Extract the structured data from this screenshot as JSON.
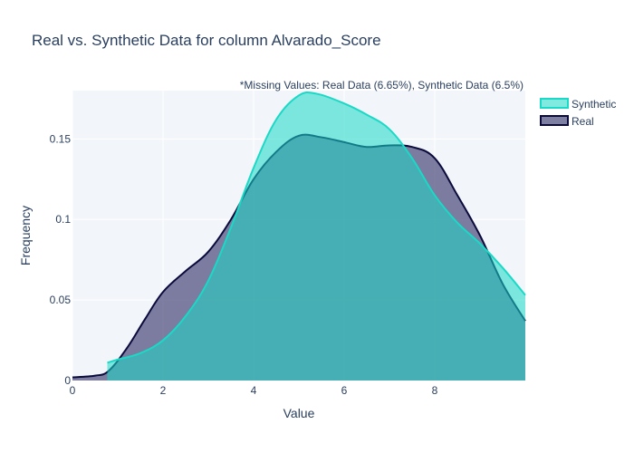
{
  "chart_data": {
    "type": "area",
    "title": "Real vs. Synthetic Data for column Alvarado_Score",
    "xlabel": "Value",
    "ylabel": "Frequency",
    "annotation": "*Missing Values: Real Data (6.65%), Synthetic Data (6.5%)",
    "xlim": [
      0,
      10
    ],
    "ylim": [
      0,
      0.18
    ],
    "x_ticks": [
      {
        "value": 0,
        "label": "0"
      },
      {
        "value": 2,
        "label": "2"
      },
      {
        "value": 4,
        "label": "4"
      },
      {
        "value": 6,
        "label": "6"
      },
      {
        "value": 8,
        "label": "8"
      }
    ],
    "y_ticks": [
      {
        "value": 0,
        "label": "0"
      },
      {
        "value": 0.05,
        "label": "0.05"
      },
      {
        "value": 0.1,
        "label": "0.1"
      },
      {
        "value": 0.15,
        "label": "0.15"
      }
    ],
    "grid": true,
    "legend_position": "top-right",
    "series": [
      {
        "name": "Real",
        "line_color": "#0a0a3c",
        "fill_color": "#3b3b6e",
        "fill_opacity": 0.65,
        "points": [
          [
            0,
            0.002
          ],
          [
            0.5,
            0.003
          ],
          [
            0.8,
            0.006
          ],
          [
            1.2,
            0.02
          ],
          [
            1.6,
            0.038
          ],
          [
            2.0,
            0.055
          ],
          [
            2.5,
            0.068
          ],
          [
            3.0,
            0.08
          ],
          [
            3.5,
            0.1
          ],
          [
            4.0,
            0.125
          ],
          [
            4.5,
            0.142
          ],
          [
            5.0,
            0.152
          ],
          [
            5.5,
            0.151
          ],
          [
            6.0,
            0.148
          ],
          [
            6.5,
            0.145
          ],
          [
            7.0,
            0.146
          ],
          [
            7.5,
            0.145
          ],
          [
            8.0,
            0.138
          ],
          [
            8.5,
            0.115
          ],
          [
            9.0,
            0.09
          ],
          [
            9.5,
            0.06
          ],
          [
            10.0,
            0.037
          ]
        ]
      },
      {
        "name": "Synthetic",
        "line_color": "#1ad9c6",
        "fill_color": "#1ad9c6",
        "fill_opacity": 0.55,
        "points": [
          [
            0.77,
            0.011
          ],
          [
            1.0,
            0.013
          ],
          [
            1.5,
            0.017
          ],
          [
            2.0,
            0.025
          ],
          [
            2.5,
            0.04
          ],
          [
            3.0,
            0.062
          ],
          [
            3.5,
            0.095
          ],
          [
            4.0,
            0.132
          ],
          [
            4.5,
            0.162
          ],
          [
            5.0,
            0.177
          ],
          [
            5.4,
            0.178
          ],
          [
            6.0,
            0.172
          ],
          [
            6.5,
            0.165
          ],
          [
            7.0,
            0.156
          ],
          [
            7.5,
            0.138
          ],
          [
            8.0,
            0.115
          ],
          [
            8.5,
            0.098
          ],
          [
            9.0,
            0.085
          ],
          [
            9.5,
            0.07
          ],
          [
            10.0,
            0.053
          ]
        ]
      }
    ]
  }
}
